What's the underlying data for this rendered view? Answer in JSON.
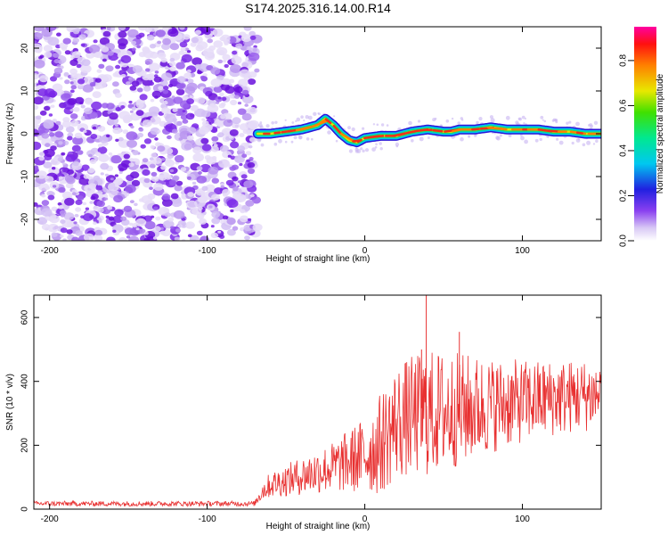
{
  "title": "S174.2025.316.14.00.R14",
  "chart_data": [
    {
      "type": "heatmap",
      "title": "S174.2025.316.14.00.R14",
      "xlabel": "Height of straight line (km)",
      "ylabel": "Frequency (Hz)",
      "xlim": [
        -210,
        150
      ],
      "ylim": [
        -25,
        25
      ],
      "xticks": [
        -200,
        -100,
        0,
        100
      ],
      "yticks": [
        -20,
        -10,
        0,
        10,
        20
      ],
      "noise_region_x": [
        -210,
        -68
      ],
      "ridge": {
        "x": [
          -68,
          -60,
          -50,
          -40,
          -30,
          -25,
          -20,
          -15,
          -10,
          -5,
          0,
          10,
          20,
          30,
          40,
          50,
          55,
          60,
          70,
          80,
          90,
          100,
          110,
          120,
          130,
          140,
          150
        ],
        "freq": [
          0,
          0,
          0.5,
          1,
          2,
          3.5,
          2,
          0,
          -1.5,
          -2,
          -1,
          -0.5,
          -0.5,
          0.5,
          1,
          0.5,
          0.5,
          1,
          1,
          1.5,
          1,
          1,
          1,
          0.5,
          0.5,
          0,
          0
        ]
      },
      "colorbar": {
        "label": "Normalized spectral amplitude",
        "ticks": [
          "0.0",
          "0.2",
          "0.4",
          "0.6",
          "0.8"
        ],
        "range": [
          0,
          0.95
        ]
      }
    },
    {
      "type": "line",
      "xlabel": "Height of straight line (km)",
      "ylabel": "SNR (10 * v/v)",
      "xlim": [
        -210,
        150
      ],
      "ylim": [
        0,
        670
      ],
      "xticks": [
        -200,
        -100,
        0,
        100
      ],
      "yticks": [
        0,
        200,
        400,
        600
      ],
      "series_color": "#e83030",
      "envelope": {
        "x": [
          -210,
          -70,
          -65,
          -60,
          -40,
          -20,
          0,
          10,
          20,
          30,
          40,
          60,
          80,
          100,
          120,
          150
        ],
        "baseline": [
          18,
          18,
          60,
          80,
          110,
          140,
          180,
          220,
          290,
          310,
          320,
          330,
          340,
          350,
          360,
          370
        ],
        "spread": [
          8,
          8,
          30,
          40,
          60,
          80,
          120,
          160,
          180,
          190,
          200,
          180,
          150,
          130,
          120,
          110
        ]
      },
      "spikes": [
        {
          "x": 39,
          "y": 670
        },
        {
          "x": 60,
          "y": 555
        },
        {
          "x": 36,
          "y": 500
        }
      ]
    }
  ]
}
